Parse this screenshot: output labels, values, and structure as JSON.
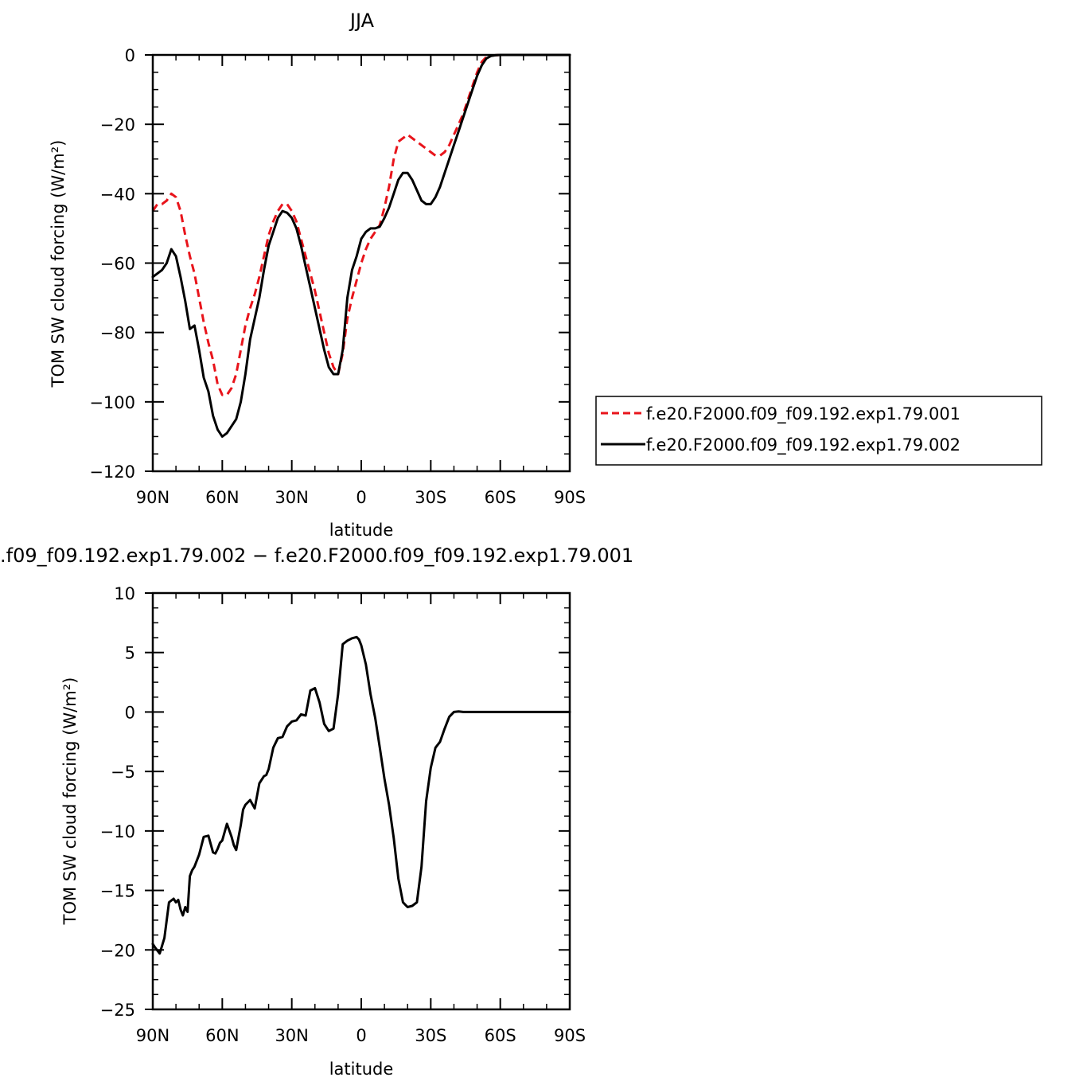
{
  "colors": {
    "series1": "#e8141b",
    "series2": "#000000",
    "axis": "#000000",
    "background": "#ffffff"
  },
  "chart_data": [
    {
      "type": "line",
      "title": "JJA",
      "xlabel": "latitude",
      "ylabel": "TOM SW cloud forcing (W/m²)",
      "xlim": [
        90,
        -90
      ],
      "ylim": [
        -120,
        0
      ],
      "xticks": [
        90,
        60,
        30,
        0,
        -30,
        -60,
        -90
      ],
      "xtick_labels": [
        "90N",
        "60N",
        "30N",
        "0",
        "30S",
        "60S",
        "90S"
      ],
      "yticks": [
        0,
        -20,
        -40,
        -60,
        -80,
        -100,
        -120
      ],
      "ytick_labels": [
        "0",
        "−20",
        "−40",
        "−60",
        "−80",
        "−100",
        "−120"
      ],
      "legend_position": "right",
      "grid": false,
      "series": [
        {
          "name": "f.e20.F2000.f09_f09.192.exp1.79.001",
          "style": "dashed",
          "x": [
            90,
            88,
            86,
            84,
            82,
            80,
            78,
            76,
            74,
            72,
            70,
            68,
            66,
            64,
            62,
            60,
            58,
            56,
            54,
            52,
            50,
            48,
            46,
            44,
            42,
            40,
            38,
            36,
            34,
            32,
            30,
            28,
            26,
            24,
            22,
            20,
            18,
            16,
            14,
            12,
            10,
            8,
            6,
            4,
            2,
            0,
            -2,
            -4,
            -6,
            -8,
            -10,
            -12,
            -14,
            -16,
            -18,
            -20,
            -22,
            -24,
            -26,
            -28,
            -30,
            -32,
            -34,
            -36,
            -38,
            -40,
            -42,
            -44,
            -46,
            -48,
            -50,
            -52,
            -54,
            -56,
            -58,
            -60,
            -62,
            -64,
            -66,
            -68,
            -70,
            -75,
            -80,
            -85,
            -90
          ],
          "y": [
            -45,
            -43,
            -43,
            -42,
            -40,
            -41,
            -45,
            -52,
            -58,
            -63,
            -70,
            -77,
            -83,
            -88,
            -95,
            -98,
            -98,
            -96,
            -92,
            -85,
            -78,
            -73,
            -69,
            -64,
            -58,
            -52,
            -48,
            -45,
            -43,
            -43,
            -45,
            -48,
            -53,
            -58,
            -63,
            -68,
            -74,
            -80,
            -86,
            -90,
            -92,
            -86,
            -76,
            -70,
            -65,
            -60,
            -56,
            -53,
            -51,
            -49,
            -44,
            -38,
            -30,
            -25,
            -24,
            -23,
            -24,
            -25,
            -26,
            -27,
            -28,
            -29,
            -29,
            -28,
            -26,
            -23,
            -20,
            -17,
            -13,
            -9,
            -5,
            -2,
            -0.6,
            -0.2,
            -0.1,
            0,
            0,
            0,
            0,
            0,
            0,
            0,
            0,
            0,
            0
          ]
        },
        {
          "name": "f.e20.F2000.f09_f09.192.exp1.79.002",
          "style": "solid",
          "x": [
            90,
            88,
            86,
            84,
            82,
            80,
            78,
            76,
            74,
            72,
            70,
            68,
            66,
            64,
            62,
            60,
            58,
            56,
            54,
            52,
            50,
            48,
            46,
            44,
            42,
            40,
            38,
            36,
            34,
            32,
            30,
            28,
            26,
            24,
            22,
            20,
            18,
            16,
            14,
            12,
            10,
            8,
            6,
            4,
            2,
            0,
            -2,
            -4,
            -6,
            -8,
            -10,
            -12,
            -14,
            -16,
            -18,
            -20,
            -22,
            -24,
            -26,
            -28,
            -30,
            -32,
            -34,
            -36,
            -38,
            -40,
            -42,
            -44,
            -46,
            -48,
            -50,
            -52,
            -54,
            -56,
            -58,
            -60,
            -62,
            -64,
            -66,
            -68,
            -70,
            -75,
            -80,
            -85,
            -90
          ],
          "y": [
            -64,
            -63,
            -62,
            -60,
            -56,
            -58,
            -64,
            -71,
            -79,
            -78,
            -85,
            -93,
            -97,
            -104,
            -108,
            -110,
            -109,
            -107,
            -105,
            -100,
            -92,
            -82,
            -76,
            -70,
            -62,
            -55,
            -51,
            -47,
            -45,
            -45.5,
            -47,
            -50,
            -55,
            -61,
            -67,
            -73,
            -79,
            -85,
            -90,
            -92,
            -92,
            -85,
            -70,
            -62,
            -58,
            -53,
            -51,
            -50,
            -50,
            -49.5,
            -47,
            -44,
            -40,
            -36,
            -34,
            -34,
            -36,
            -39,
            -42,
            -43,
            -43,
            -41,
            -38,
            -34,
            -30,
            -26,
            -22,
            -18,
            -14,
            -10,
            -6,
            -3,
            -1,
            -0.3,
            -0.1,
            0,
            0,
            0,
            0,
            0,
            0,
            0,
            0,
            0,
            0
          ]
        }
      ]
    },
    {
      "type": "line",
      "title": ".f09_f09.192.exp1.79.002 − f.e20.F2000.f09_f09.192.exp1.79.001",
      "xlabel": "latitude",
      "ylabel": "TOM SW cloud forcing (W/m²)",
      "xlim": [
        90,
        -90
      ],
      "ylim": [
        -25,
        10
      ],
      "xticks": [
        90,
        60,
        30,
        0,
        -30,
        -60,
        -90
      ],
      "xtick_labels": [
        "90N",
        "60N",
        "30N",
        "0",
        "30S",
        "60S",
        "90S"
      ],
      "yticks": [
        10,
        5,
        0,
        -5,
        -10,
        -15,
        -20,
        -25
      ],
      "ytick_labels": [
        "10",
        "5",
        "0",
        "−5",
        "−10",
        "−15",
        "−20",
        "−25"
      ],
      "grid": false,
      "series": [
        {
          "style": "solid",
          "x": [
            90,
            89,
            87,
            85,
            83,
            81,
            80,
            79,
            78,
            77,
            76,
            75,
            74,
            73,
            72,
            70,
            68,
            66,
            64,
            63,
            62,
            61,
            60,
            58,
            56,
            55,
            54,
            52,
            51,
            50,
            48,
            46,
            44,
            42,
            41,
            40,
            38,
            36,
            34,
            32,
            30,
            28,
            26,
            24,
            22,
            20,
            18,
            16,
            14,
            12,
            10,
            8,
            6,
            4,
            2,
            1,
            0,
            -2,
            -4,
            -6,
            -8,
            -10,
            -12,
            -14,
            -16,
            -18,
            -20,
            -22,
            -24,
            -26,
            -28,
            -30,
            -32,
            -34,
            -36,
            -38,
            -40,
            -42,
            -44,
            -46,
            -48,
            -50,
            -52,
            -54,
            -56,
            -58,
            -60,
            -62,
            -64,
            -66,
            -68,
            -70,
            -75,
            -80,
            -85,
            -90
          ],
          "y": [
            -19.5,
            -19.8,
            -20.3,
            -19,
            -16,
            -15.7,
            -16,
            -15.8,
            -16.6,
            -17.1,
            -16.4,
            -16.8,
            -13.8,
            -13.3,
            -13,
            -12,
            -10.5,
            -10.4,
            -11.8,
            -11.9,
            -11.5,
            -11,
            -10.8,
            -9.4,
            -10.5,
            -11.2,
            -11.6,
            -9.5,
            -8.2,
            -7.8,
            -7.4,
            -8.1,
            -6,
            -5.4,
            -5.3,
            -4.8,
            -3,
            -2.2,
            -2.1,
            -1.2,
            -0.8,
            -0.7,
            -0.2,
            -0.3,
            1.8,
            2,
            0.8,
            -1,
            -1.6,
            -1.4,
            1.5,
            5.7,
            6,
            6.2,
            6.3,
            6.1,
            5.6,
            4,
            1.5,
            -0.5,
            -3,
            -5.6,
            -7.8,
            -10.6,
            -14,
            -16,
            -16.4,
            -16.3,
            -16,
            -13,
            -7.5,
            -4.7,
            -3,
            -2.5,
            -1.4,
            -0.4,
            0,
            0.05,
            0,
            0,
            0,
            0,
            0,
            0,
            0,
            0,
            0,
            0,
            0,
            0,
            0,
            0,
            0,
            0,
            0,
            0
          ]
        }
      ]
    }
  ]
}
